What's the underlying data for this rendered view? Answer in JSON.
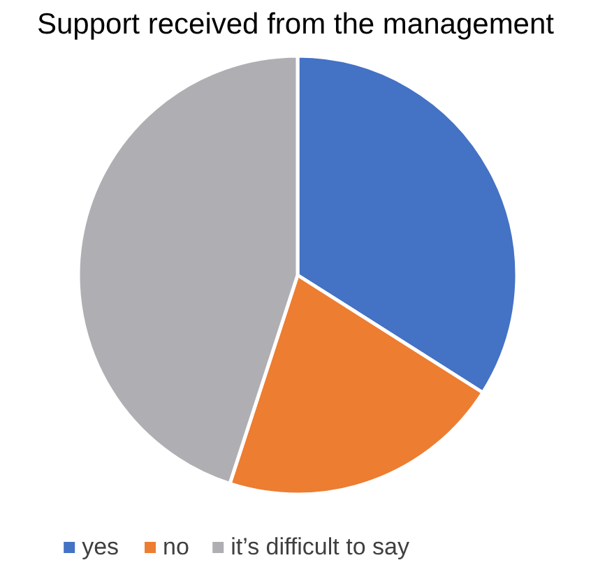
{
  "chart_data": {
    "type": "pie",
    "title": "Support received from the management",
    "categories": [
      "yes",
      "no",
      "it’s difficult to say"
    ],
    "values": [
      34,
      21,
      45
    ],
    "colors": [
      "#4472c4",
      "#ed7d31",
      "#afafb3"
    ],
    "legend": "bottom"
  }
}
